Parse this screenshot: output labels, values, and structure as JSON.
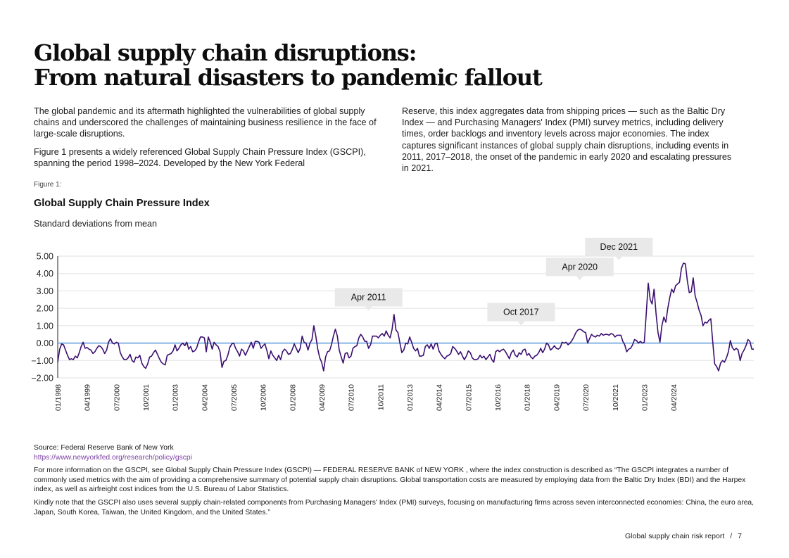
{
  "title": {
    "line1": "Global supply chain disruptions:",
    "line2": "From natural disasters to pandemic fallout"
  },
  "intro": {
    "left_p1": "The global pandemic and its aftermath highlighted the vulnerabilities of global supply chains and underscored the challenges of maintaining business resilience in the face of large-scale disruptions.",
    "left_p2": "Figure 1 presents a widely referenced Global Supply Chain Pressure Index (GSCPI), spanning the period 1998–2024. Developed by the New York Federal",
    "right_p1": "Reserve, this index aggregates data from shipping prices — such as the Baltic Dry Index — and Purchasing Managers' Index (PMI) survey metrics, including delivery times, order backlogs and inventory levels across major economies. The index captures significant instances of global supply chain disruptions, including events in 2011, 2017–2018, the onset of the pandemic in early 2020 and escalating pressures in 2021."
  },
  "figure_label": "Figure 1:",
  "chart_data": {
    "type": "line",
    "title": "Global Supply Chain Pressure Index",
    "subtitle": "Standard deviations from mean",
    "xlabel": "",
    "ylabel": "",
    "ylim": [
      -2.0,
      5.0
    ],
    "y_ticks": [
      "5.00",
      "4.00",
      "3.00",
      "2.00",
      "1.00",
      "0.00",
      "−1.00",
      "−2.00"
    ],
    "y_tick_values": [
      5,
      4,
      3,
      2,
      1,
      0,
      -1,
      -2
    ],
    "x_tick_labels": [
      "01/1998",
      "04/1999",
      "07/2000",
      "10/2001",
      "01/2003",
      "04/2004",
      "07/2005",
      "10/2006",
      "01/2008",
      "04/2009",
      "07/2010",
      "10/2011",
      "01/2013",
      "04/2014",
      "07/2015",
      "10/2016",
      "01/2018",
      "04/2019",
      "07/2020",
      "10/2021",
      "01/2023",
      "04/2024"
    ],
    "x_tick_values": [
      "1998-01",
      "1999-04",
      "2000-07",
      "2001-10",
      "2003-01",
      "2004-04",
      "2005-07",
      "2006-10",
      "2008-01",
      "2009-04",
      "2010-07",
      "2011-10",
      "2013-01",
      "2014-04",
      "2015-07",
      "2016-10",
      "2018-01",
      "2019-04",
      "2020-07",
      "2021-10",
      "2023-01",
      "2024-04"
    ],
    "grid": true,
    "colors": {
      "line": "#3b0f70",
      "zero_line": "#4a90d9",
      "grid": "#e2e2e2",
      "callout_bg": "#e9e9e9"
    },
    "annotations": [
      {
        "label": "Apr 2011",
        "x": "2011-04",
        "y": 1.7
      },
      {
        "label": "Oct 2017",
        "x": "2017-10",
        "y": 0.85
      },
      {
        "label": "Apr 2020",
        "x": "2020-04",
        "y": 3.45
      },
      {
        "label": "Dec 2021",
        "x": "2021-12",
        "y": 4.6
      }
    ],
    "series": [
      {
        "start": "1998-01",
        "values": [
          -1.1,
          -0.35,
          -0.05,
          -0.1,
          -0.4,
          -0.7,
          -0.95,
          -0.9,
          -0.95,
          -0.75,
          -0.85,
          -0.55,
          -0.2,
          0.05,
          -0.3,
          -0.25,
          -0.35,
          -0.4,
          -0.6,
          -0.5,
          -0.3,
          -0.15,
          -0.2,
          -0.35,
          -0.6,
          -0.4,
          0.05,
          0.25,
          0.0,
          -0.05,
          0.05,
          0.0,
          -0.55,
          -0.8,
          -0.95,
          -0.95,
          -0.85,
          -0.65,
          -1.0,
          -1.1,
          -0.8,
          -0.85,
          -0.7,
          -1.15,
          -1.35,
          -1.45,
          -1.2,
          -0.8,
          -0.75,
          -0.55,
          -0.4,
          -0.65,
          -0.9,
          -1.1,
          -1.2,
          -1.25,
          -0.7,
          -0.65,
          -0.6,
          -0.45,
          -0.1,
          -0.45,
          -0.3,
          -0.1,
          0.0,
          -0.15,
          0.05,
          -0.35,
          -0.2,
          -0.5,
          -0.45,
          -0.3,
          0.05,
          0.35,
          0.35,
          0.3,
          -0.5,
          0.35,
          0.05,
          -0.35,
          0.05,
          -0.1,
          -0.2,
          -0.5,
          -1.4,
          -1.05,
          -1.0,
          -0.7,
          -0.25,
          -0.05,
          0.0,
          -0.3,
          -0.5,
          -0.75,
          -0.35,
          -0.45,
          -0.7,
          -0.45,
          -0.2,
          0.05,
          -0.3,
          0.1,
          0.1,
          0.05,
          -0.3,
          -0.15,
          -0.05,
          -0.45,
          -0.9,
          -0.45,
          -0.7,
          -0.85,
          -1.0,
          -0.7,
          -0.95,
          -0.5,
          -0.35,
          -0.45,
          -0.65,
          -0.6,
          -0.35,
          -0.05,
          -0.3,
          -0.55,
          -0.3,
          0.4,
          0.05,
          0.0,
          -0.4,
          0.0,
          0.2,
          1.0,
          0.4,
          -0.35,
          -0.85,
          -1.1,
          -1.6,
          -0.8,
          -0.5,
          -0.45,
          -0.1,
          0.4,
          0.8,
          0.4,
          -0.4,
          -0.8,
          -1.15,
          -0.6,
          -0.55,
          -0.85,
          -0.75,
          -0.3,
          -0.2,
          -0.15,
          0.3,
          0.5,
          0.35,
          0.1,
          0.1,
          -0.3,
          -0.1,
          0.4,
          0.4,
          0.4,
          0.3,
          0.45,
          0.55,
          0.4,
          0.7,
          0.45,
          0.3,
          0.8,
          1.65,
          0.75,
          0.6,
          0.0,
          -0.55,
          -0.4,
          0.0,
          -0.05,
          0.35,
          0.05,
          -0.3,
          -0.45,
          -0.3,
          -0.75,
          -0.75,
          -0.7,
          -0.2,
          -0.1,
          -0.3,
          -0.05,
          -0.35,
          -0.05,
          0.0,
          -0.45,
          -0.65,
          -0.8,
          -0.9,
          -0.75,
          -0.7,
          -0.6,
          -0.2,
          -0.3,
          -0.45,
          -0.65,
          -0.5,
          -0.75,
          -0.95,
          -0.75,
          -0.45,
          -0.55,
          -0.85,
          -0.95,
          -0.95,
          -0.9,
          -0.7,
          -0.85,
          -0.75,
          -0.95,
          -0.8,
          -0.65,
          -0.95,
          -1.1,
          -0.5,
          -0.4,
          -0.5,
          -0.4,
          -0.35,
          -0.5,
          -0.7,
          -0.9,
          -0.55,
          -0.4,
          -0.7,
          -0.8,
          -0.55,
          -0.65,
          -0.4,
          -0.35,
          -0.7,
          -0.6,
          -0.8,
          -0.9,
          -0.75,
          -0.7,
          -0.55,
          -0.3,
          -0.55,
          -0.35,
          0.0,
          -0.1,
          -0.4,
          -0.3,
          -0.15,
          -0.3,
          -0.35,
          -0.25,
          0.05,
          0.0,
          0.05,
          -0.1,
          0.0,
          0.15,
          0.35,
          0.6,
          0.75,
          0.8,
          0.75,
          0.65,
          0.6,
          0.0,
          0.25,
          0.5,
          0.4,
          0.35,
          0.45,
          0.4,
          0.55,
          0.45,
          0.5,
          0.5,
          0.45,
          0.55,
          0.5,
          0.35,
          0.45,
          0.45,
          0.45,
          0.1,
          -0.1,
          -0.5,
          -0.35,
          -0.3,
          -0.1,
          0.2,
          0.15,
          0.0,
          0.1,
          0.0,
          0.05,
          1.7,
          3.45,
          2.5,
          2.25,
          3.1,
          1.7,
          0.6,
          0.05,
          1.0,
          1.5,
          1.2,
          2.0,
          2.6,
          3.1,
          2.9,
          3.3,
          3.4,
          3.5,
          4.3,
          4.6,
          4.55,
          3.6,
          2.9,
          2.95,
          3.75,
          2.7,
          2.35,
          1.9,
          1.6,
          1.0,
          1.2,
          1.15,
          1.3,
          1.4,
          0.05,
          -1.2,
          -1.35,
          -1.6,
          -1.15,
          -1.0,
          -1.1,
          -0.85,
          -0.5,
          0.15,
          -0.25,
          -0.4,
          -0.3,
          -0.4,
          -1.0,
          -0.6,
          -0.4,
          -0.15,
          0.2,
          0.1,
          -0.35,
          -0.35
        ]
      }
    ]
  },
  "source": {
    "text": "Source: Federal Reserve Bank of New York",
    "url": "https://www.newyorkfed.org/research/policy/gscpi"
  },
  "footnotes": {
    "p1": "For more information on the GSCPI, see Global Supply Chain Pressure Index (GSCPI) — FEDERAL RESERVE BANK of NEW YORK , where the index construction is described as “The GSCPI integrates a number of commonly used metrics with the aim of providing a comprehensive summary of potential supply chain disruptions. Global transportation costs are measured by employing data from the Baltic Dry Index (BDI) and the Harpex index, as well as airfreight cost indices from the U.S. Bureau of Labor Statistics.",
    "p2": "Kindly note that the GSCPI also uses several supply chain-related components from Purchasing Managers' Index (PMI) surveys, focusing on manufacturing firms across seven interconnected economies: China, the euro area, Japan, South Korea, Taiwan, the United Kingdom, and the United States.”"
  },
  "footer": {
    "report_name": "Global supply chain risk report",
    "separator": "/",
    "page_number": "7"
  }
}
